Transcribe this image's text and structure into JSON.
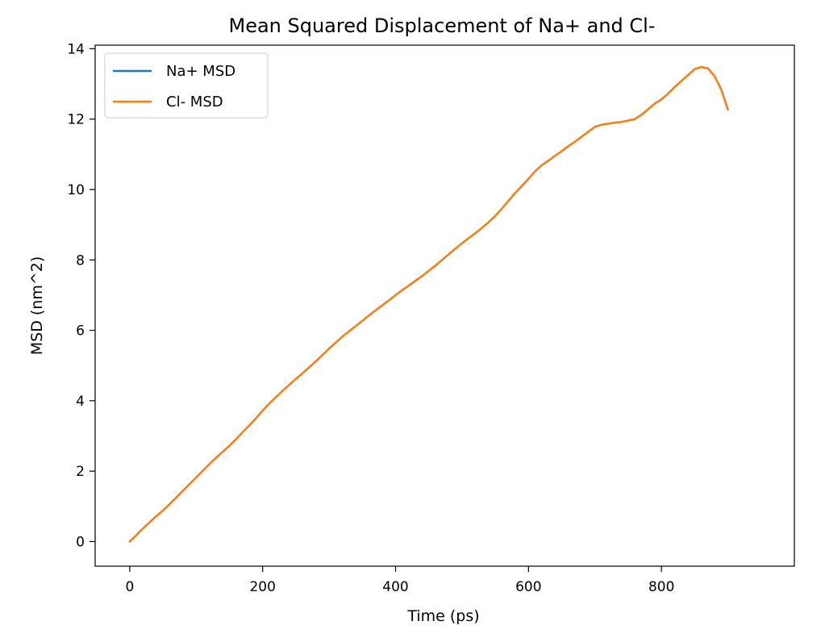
{
  "chart_data": {
    "type": "line",
    "title": "Mean Squared Displacement of Na+ and Cl-",
    "xlabel": "Time (ps)",
    "ylabel": "MSD (nm^2)",
    "xlim": [
      -52,
      1000
    ],
    "ylim": [
      -0.7,
      14.1
    ],
    "xticks": [
      0,
      200,
      400,
      600,
      800
    ],
    "yticks": [
      0,
      2,
      4,
      6,
      8,
      10,
      12,
      14
    ],
    "grid": false,
    "legend_position": "top-left",
    "x": [
      0,
      10,
      20,
      30,
      40,
      50,
      60,
      70,
      80,
      90,
      100,
      110,
      120,
      130,
      140,
      150,
      160,
      170,
      180,
      190,
      200,
      210,
      220,
      230,
      240,
      250,
      260,
      270,
      280,
      290,
      300,
      310,
      320,
      330,
      340,
      350,
      360,
      370,
      380,
      390,
      400,
      410,
      420,
      430,
      440,
      450,
      460,
      470,
      480,
      490,
      500,
      510,
      520,
      530,
      540,
      550,
      560,
      570,
      580,
      590,
      600,
      610,
      620,
      630,
      640,
      650,
      660,
      670,
      680,
      690,
      700,
      710,
      720,
      730,
      740,
      750,
      760,
      770,
      780,
      790,
      800,
      810,
      820,
      830,
      840,
      850,
      860,
      870,
      880,
      890,
      900
    ],
    "series": [
      {
        "name": "Na+ MSD",
        "color": "#1f77b4",
        "values": [
          0.0,
          0.18,
          0.37,
          0.55,
          0.72,
          0.88,
          1.06,
          1.25,
          1.44,
          1.63,
          1.82,
          2.01,
          2.2,
          2.38,
          2.55,
          2.72,
          2.91,
          3.11,
          3.3,
          3.5,
          3.72,
          3.92,
          4.1,
          4.28,
          4.45,
          4.62,
          4.78,
          4.95,
          5.12,
          5.3,
          5.48,
          5.65,
          5.82,
          5.97,
          6.12,
          6.27,
          6.42,
          6.57,
          6.71,
          6.85,
          7.0,
          7.14,
          7.27,
          7.41,
          7.54,
          7.69,
          7.84,
          8.0,
          8.16,
          8.32,
          8.47,
          8.62,
          8.76,
          8.91,
          9.07,
          9.25,
          9.46,
          9.68,
          9.9,
          10.1,
          10.3,
          10.52,
          10.69,
          10.82,
          10.96,
          11.09,
          11.23,
          11.36,
          11.5,
          11.64,
          11.78,
          11.84,
          11.87,
          11.9,
          11.92,
          11.96,
          12.0,
          12.12,
          12.28,
          12.44,
          12.56,
          12.72,
          12.91,
          13.08,
          13.25,
          13.42,
          13.48,
          13.44,
          13.22,
          12.84,
          12.27
        ]
      },
      {
        "name": "Cl- MSD",
        "color": "#ff7f0e",
        "values": [
          0.0,
          0.18,
          0.37,
          0.55,
          0.72,
          0.88,
          1.06,
          1.25,
          1.44,
          1.63,
          1.82,
          2.01,
          2.2,
          2.38,
          2.55,
          2.72,
          2.91,
          3.11,
          3.3,
          3.5,
          3.72,
          3.92,
          4.1,
          4.28,
          4.45,
          4.62,
          4.78,
          4.95,
          5.12,
          5.3,
          5.48,
          5.65,
          5.82,
          5.97,
          6.12,
          6.27,
          6.42,
          6.57,
          6.71,
          6.85,
          7.0,
          7.14,
          7.27,
          7.41,
          7.54,
          7.69,
          7.84,
          8.0,
          8.16,
          8.32,
          8.47,
          8.62,
          8.76,
          8.91,
          9.07,
          9.25,
          9.46,
          9.68,
          9.9,
          10.1,
          10.3,
          10.52,
          10.69,
          10.82,
          10.96,
          11.09,
          11.23,
          11.36,
          11.5,
          11.64,
          11.78,
          11.84,
          11.87,
          11.9,
          11.92,
          11.96,
          12.0,
          12.12,
          12.28,
          12.44,
          12.56,
          12.72,
          12.91,
          13.08,
          13.25,
          13.42,
          13.48,
          13.44,
          13.22,
          12.84,
          12.27
        ]
      }
    ]
  }
}
